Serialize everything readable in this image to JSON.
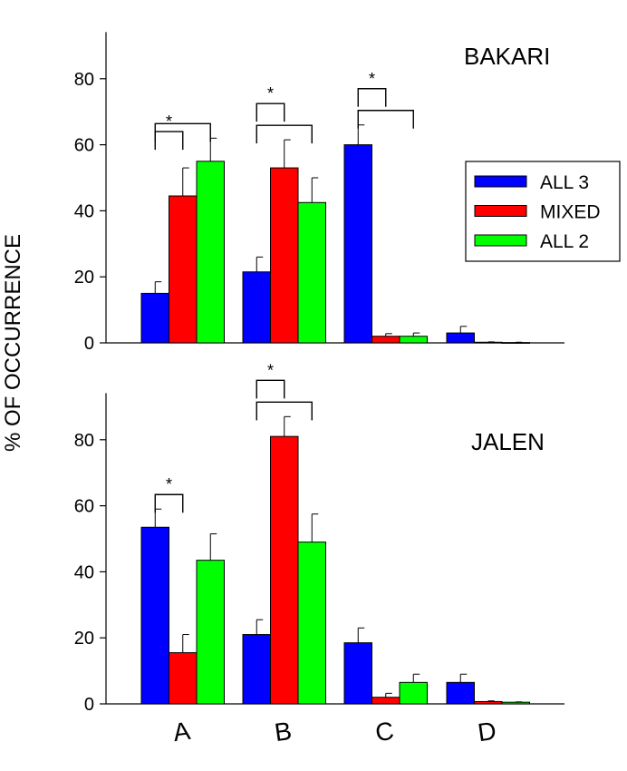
{
  "chart_data": {
    "type": "bar",
    "ylabel": "% OF OCCURRENCE",
    "categories": [
      "A",
      "B",
      "C",
      "D"
    ],
    "series": [
      {
        "name": "ALL 3",
        "color": "#0000ff"
      },
      {
        "name": "MIXED",
        "color": "#ff0000"
      },
      {
        "name": "ALL 2",
        "color": "#00ff00"
      }
    ],
    "significance_marker": "*",
    "panels": [
      {
        "name": "BAKARI",
        "ylim": [
          0,
          90
        ],
        "yticks": [
          0,
          20,
          40,
          60,
          80
        ],
        "values": [
          [
            15,
            44.5,
            55
          ],
          [
            21.5,
            53,
            42.5
          ],
          [
            60,
            2,
            2
          ],
          [
            3,
            0.2,
            0.1
          ]
        ],
        "errors": [
          [
            3.5,
            8.5,
            7
          ],
          [
            4.5,
            8.5,
            7.5
          ],
          [
            6,
            0.8,
            1
          ],
          [
            2,
            0.1,
            0.1
          ]
        ],
        "significance": [
          {
            "category": 0,
            "pairs": [
              [
                0,
                1
              ],
              [
                0,
                2
              ]
            ]
          },
          {
            "category": 1,
            "pairs": [
              [
                0,
                1
              ],
              [
                0,
                2
              ]
            ]
          },
          {
            "category": 2,
            "pairs": [
              [
                0,
                1
              ],
              [
                0,
                2
              ]
            ]
          }
        ]
      },
      {
        "name": "JALEN",
        "ylim": [
          0,
          90
        ],
        "yticks": [
          0,
          20,
          40,
          60,
          80
        ],
        "values": [
          [
            53.5,
            15.5,
            43.5
          ],
          [
            21,
            81,
            49
          ],
          [
            18.5,
            2,
            6.5
          ],
          [
            6.5,
            0.7,
            0.5
          ]
        ],
        "errors": [
          [
            5.5,
            5.5,
            8
          ],
          [
            4.5,
            6,
            8.5
          ],
          [
            4.5,
            1.2,
            2.5
          ],
          [
            2.5,
            0.2,
            0.1
          ]
        ],
        "significance": [
          {
            "category": 0,
            "pairs": [
              [
                0,
                1
              ]
            ]
          },
          {
            "category": 1,
            "pairs": [
              [
                0,
                1
              ],
              [
                0,
                2
              ]
            ]
          }
        ]
      }
    ]
  }
}
